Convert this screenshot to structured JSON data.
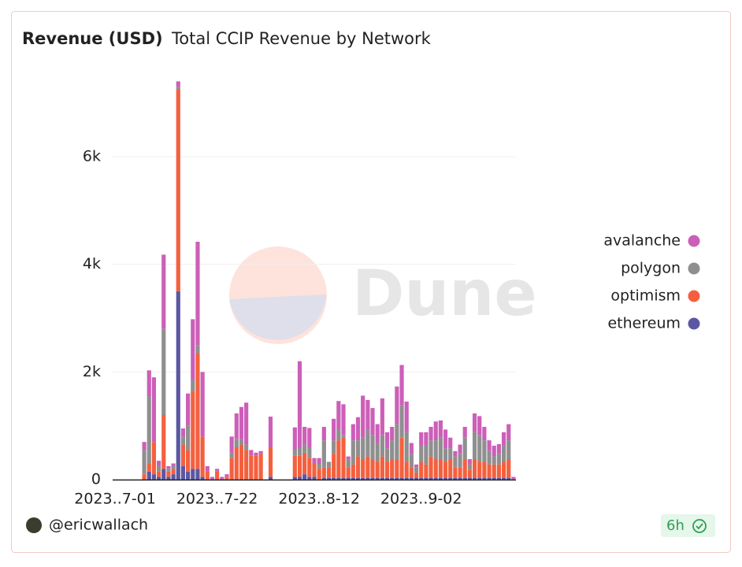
{
  "header": {
    "title": "Revenue (USD)",
    "subtitle": "Total CCIP Revenue by Network"
  },
  "footer": {
    "author": "@ericwallach",
    "age": "6h"
  },
  "watermark": "Dune",
  "chart_data": {
    "type": "stacked_bar",
    "categories": [
      "2023-07-01",
      "2023-07-02",
      "2023-07-03",
      "2023-07-04",
      "2023-07-05",
      "2023-07-06",
      "2023-07-07",
      "2023-07-08",
      "2023-07-09",
      "2023-07-10",
      "2023-07-11",
      "2023-07-12",
      "2023-07-13",
      "2023-07-14",
      "2023-07-15",
      "2023-07-16",
      "2023-07-17",
      "2023-07-18",
      "2023-07-19",
      "2023-07-20",
      "2023-07-21",
      "2023-07-22",
      "2023-07-23",
      "2023-07-24",
      "2023-07-25",
      "2023-07-26",
      "2023-07-27",
      "2023-07-28",
      "2023-07-29",
      "2023-07-30",
      "2023-07-31",
      "2023-08-01",
      "2023-08-02",
      "2023-08-03",
      "2023-08-04",
      "2023-08-05",
      "2023-08-06",
      "2023-08-07",
      "2023-08-08",
      "2023-08-09",
      "2023-08-10",
      "2023-08-11",
      "2023-08-12",
      "2023-08-13",
      "2023-08-14",
      "2023-08-15",
      "2023-08-16",
      "2023-08-17",
      "2023-08-18",
      "2023-08-19",
      "2023-08-20",
      "2023-08-21",
      "2023-08-22",
      "2023-08-23",
      "2023-08-24",
      "2023-08-25",
      "2023-08-26",
      "2023-08-27",
      "2023-08-28",
      "2023-08-29",
      "2023-08-30",
      "2023-08-31",
      "2023-09-01",
      "2023-09-02",
      "2023-09-03",
      "2023-09-04",
      "2023-09-05",
      "2023-09-06",
      "2023-09-07",
      "2023-09-08",
      "2023-09-09",
      "2023-09-10",
      "2023-09-11",
      "2023-09-12",
      "2023-09-13",
      "2023-09-14",
      "2023-09-15",
      "2023-09-16",
      "2023-09-17",
      "2023-09-18",
      "2023-09-19",
      "2023-09-20",
      "2023-09-21"
    ],
    "xticks": [
      {
        "value": "2023-07-01",
        "label": "2023..7-01"
      },
      {
        "value": "2023-07-22",
        "label": "2023..7-22"
      },
      {
        "value": "2023-08-12",
        "label": "2023..8-12"
      },
      {
        "value": "2023-09-02",
        "label": "2023..9-02"
      }
    ],
    "series": [
      {
        "name": "ethereum",
        "color": "#5b57a2",
        "values": [
          0,
          0,
          0,
          0,
          0,
          0,
          0,
          150,
          100,
          50,
          200,
          50,
          100,
          3500,
          250,
          150,
          200,
          200,
          50,
          0,
          0,
          0,
          0,
          0,
          0,
          0,
          0,
          0,
          0,
          0,
          0,
          0,
          50,
          0,
          0,
          0,
          0,
          50,
          50,
          100,
          50,
          50,
          0,
          30,
          30,
          30,
          30,
          30,
          30,
          30,
          30,
          30,
          30,
          30,
          30,
          30,
          30,
          30,
          30,
          30,
          30,
          30,
          30,
          30,
          30,
          30,
          30,
          30,
          30,
          30,
          30,
          30,
          30,
          30,
          30,
          30,
          30,
          30,
          30,
          30,
          30,
          30,
          0
        ]
      },
      {
        "name": "optimism",
        "color": "#f4603e",
        "values": [
          0,
          0,
          0,
          0,
          0,
          0,
          100,
          150,
          600,
          100,
          1000,
          100,
          100,
          3750,
          400,
          400,
          1450,
          2150,
          750,
          150,
          0,
          150,
          0,
          50,
          400,
          600,
          650,
          550,
          450,
          450,
          480,
          0,
          550,
          0,
          0,
          0,
          0,
          400,
          400,
          400,
          350,
          250,
          200,
          200,
          200,
          450,
          700,
          750,
          200,
          250,
          400,
          350,
          400,
          350,
          300,
          400,
          300,
          350,
          350,
          750,
          300,
          200,
          100,
          300,
          250,
          400,
          350,
          350,
          300,
          350,
          200,
          200,
          350,
          150,
          350,
          300,
          300,
          250,
          250,
          250,
          300,
          350,
          0
        ]
      },
      {
        "name": "polygon",
        "color": "#8f8f8f",
        "values": [
          0,
          0,
          0,
          0,
          0,
          0,
          450,
          1250,
          0,
          100,
          1600,
          50,
          50,
          50,
          150,
          450,
          200,
          150,
          0,
          0,
          0,
          0,
          0,
          0,
          100,
          150,
          100,
          100,
          0,
          0,
          0,
          0,
          0,
          0,
          0,
          0,
          0,
          100,
          150,
          150,
          200,
          0,
          100,
          500,
          100,
          250,
          200,
          50,
          150,
          450,
          300,
          400,
          500,
          450,
          350,
          400,
          250,
          350,
          650,
          600,
          550,
          250,
          100,
          300,
          350,
          300,
          350,
          400,
          250,
          200,
          200,
          250,
          400,
          100,
          500,
          500,
          400,
          250,
          150,
          200,
          300,
          350,
          0
        ]
      },
      {
        "name": "avalanche",
        "color": "#cc5fb8",
        "values": [
          0,
          0,
          0,
          0,
          0,
          0,
          150,
          480,
          1200,
          100,
          1380,
          50,
          50,
          100,
          150,
          600,
          1130,
          1920,
          1200,
          100,
          50,
          50,
          50,
          50,
          300,
          480,
          600,
          780,
          100,
          50,
          50,
          0,
          570,
          0,
          0,
          0,
          0,
          420,
          1600,
          330,
          360,
          100,
          100,
          250,
          0,
          400,
          530,
          570,
          50,
          300,
          430,
          780,
          550,
          500,
          350,
          680,
          300,
          250,
          700,
          750,
          570,
          200,
          50,
          250,
          250,
          250,
          350,
          320,
          350,
          200,
          100,
          170,
          200,
          100,
          350,
          350,
          250,
          200,
          200,
          180,
          250,
          300,
          50
        ]
      }
    ],
    "ylim": [
      0,
      7500
    ],
    "yticks": [
      0,
      {
        "value": 2000,
        "label": "2k"
      },
      {
        "value": 4000,
        "label": "4k"
      },
      {
        "value": 6000,
        "label": "6k"
      }
    ],
    "grid": true
  }
}
